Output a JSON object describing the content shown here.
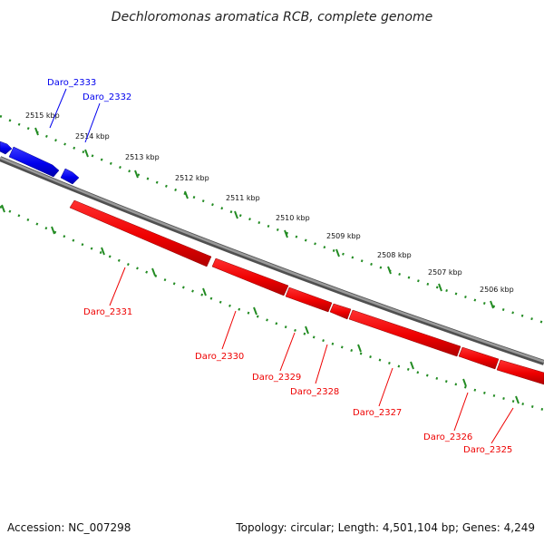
{
  "title": "Dechloromonas aromatica RCB, complete genome",
  "footer": {
    "accession": "Accession: NC_007298",
    "summary": "Topology: circular; Length: 4,501,104 bp; Genes: 4,249"
  },
  "colors": {
    "forward_gene": "#0000ee",
    "reverse_gene": "#ee0000",
    "backbone": "#808080",
    "tick": "#228b22"
  },
  "kbp_ticks": [
    "2515 kbp",
    "2514 kbp",
    "2513 kbp",
    "2512 kbp",
    "2511 kbp",
    "2510 kbp",
    "2509 kbp",
    "2508 kbp",
    "2507 kbp",
    "2506 kbp"
  ],
  "genes_forward": [
    "Daro_2333",
    "Daro_2332"
  ],
  "genes_reverse": [
    "Daro_2331",
    "Daro_2330",
    "Daro_2329",
    "Daro_2328",
    "Daro_2327",
    "Daro_2326",
    "Daro_2325"
  ]
}
